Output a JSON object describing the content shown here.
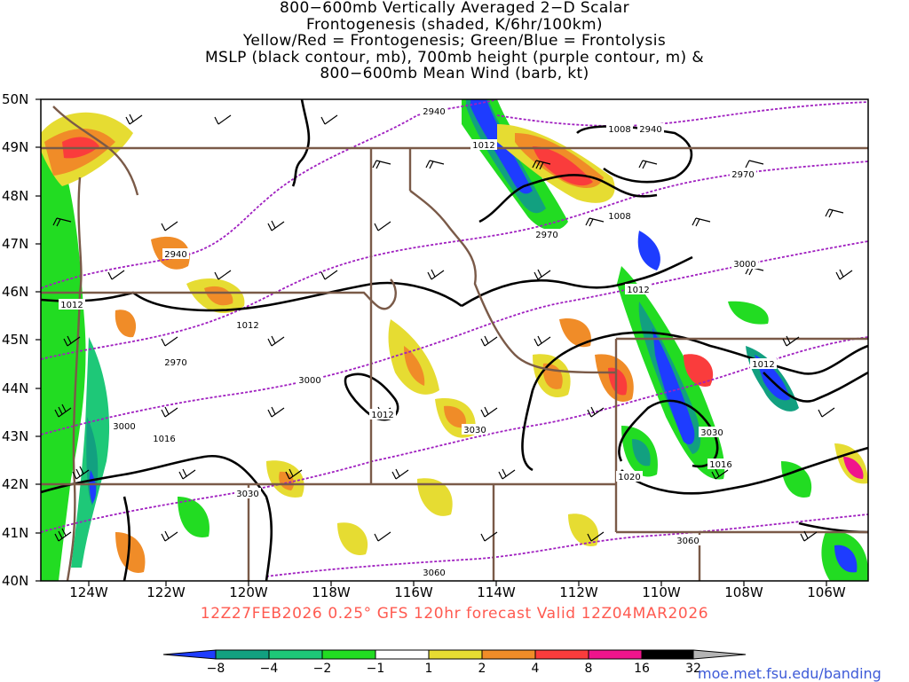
{
  "title": {
    "lines": [
      "800−600mb Vertically Averaged 2−D Scalar",
      "Frontogenesis (shaded, K/6hr/100km)",
      "Yellow/Red = Frontogenesis;  Green/Blue = Frontolysis",
      "MSLP (black contour, mb), 700mb height (purple contour, m) &",
      "800−600mb Mean Wind (barb, kt)"
    ]
  },
  "map": {
    "lat_labels": [
      "50N",
      "49N",
      "48N",
      "47N",
      "46N",
      "45N",
      "44N",
      "43N",
      "42N",
      "41N",
      "40N"
    ],
    "lon_labels": [
      "124W",
      "122W",
      "120W",
      "118W",
      "116W",
      "114W",
      "112W",
      "110W",
      "108W",
      "106W"
    ],
    "extent": {
      "lon_min": -125,
      "lon_max": -105,
      "lat_min": 40,
      "lat_max": 50
    },
    "colors": {
      "mslp_contour": "#000000",
      "height_contour": "#a020c0",
      "state_border": "#7a5a48",
      "wind_barb": "#000000"
    },
    "mslp_labels": [
      "1012",
      "1012",
      "1012",
      "1012",
      "1008",
      "1008",
      "1012",
      "1016",
      "1016",
      "1020",
      "1012"
    ],
    "height_labels": [
      "2940",
      "2940",
      "2940",
      "2970",
      "2970",
      "2970",
      "3000",
      "3000",
      "3000",
      "3030",
      "3030",
      "3030",
      "3060",
      "3060"
    ]
  },
  "valid_line": "12Z27FEB2026 0.25° GFS 120hr forecast Valid 12Z04MAR2026",
  "colorbar": {
    "labels": [
      "−8",
      "−4",
      "−2",
      "−1",
      "1",
      "2",
      "4",
      "8",
      "16",
      "32"
    ],
    "colors": [
      "#1e3cff",
      "#12a080",
      "#1ec878",
      "#22dc22",
      "#ffffff",
      "#e6dc32",
      "#f08c28",
      "#fa3c3c",
      "#f0148c",
      "#000000",
      "#b4b4b4"
    ]
  },
  "credit": "moe.met.fsu.edu/banding"
}
